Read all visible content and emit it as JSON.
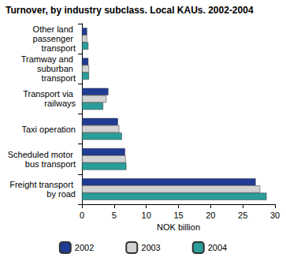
{
  "chart_data": {
    "type": "bar",
    "orientation": "horizontal",
    "title": "Turnover, by industry subclass. Local KAUs. 2002-2004",
    "categories": [
      "Other land passenger transport",
      "Tramway and suburban transport",
      "Transport via railways",
      "Taxi operation",
      "Scheduled motor bus transport",
      "Freight transport by road"
    ],
    "series": [
      {
        "name": "2002",
        "color": "#1f3b94",
        "values": [
          0.8,
          1.0,
          4.1,
          5.6,
          6.7,
          27.0
        ]
      },
      {
        "name": "2003",
        "color": "#d2d2d2",
        "values": [
          0.8,
          1.1,
          3.8,
          5.8,
          6.8,
          27.7
        ]
      },
      {
        "name": "2004",
        "color": "#2a9e9a",
        "values": [
          1.0,
          1.1,
          3.3,
          6.2,
          6.9,
          28.7
        ]
      }
    ],
    "xlabel": "NOK billion",
    "xlim": [
      0,
      30
    ],
    "xticks": [
      0,
      5,
      10,
      15,
      20,
      25,
      30
    ],
    "grid": false,
    "legend": "bottom"
  }
}
